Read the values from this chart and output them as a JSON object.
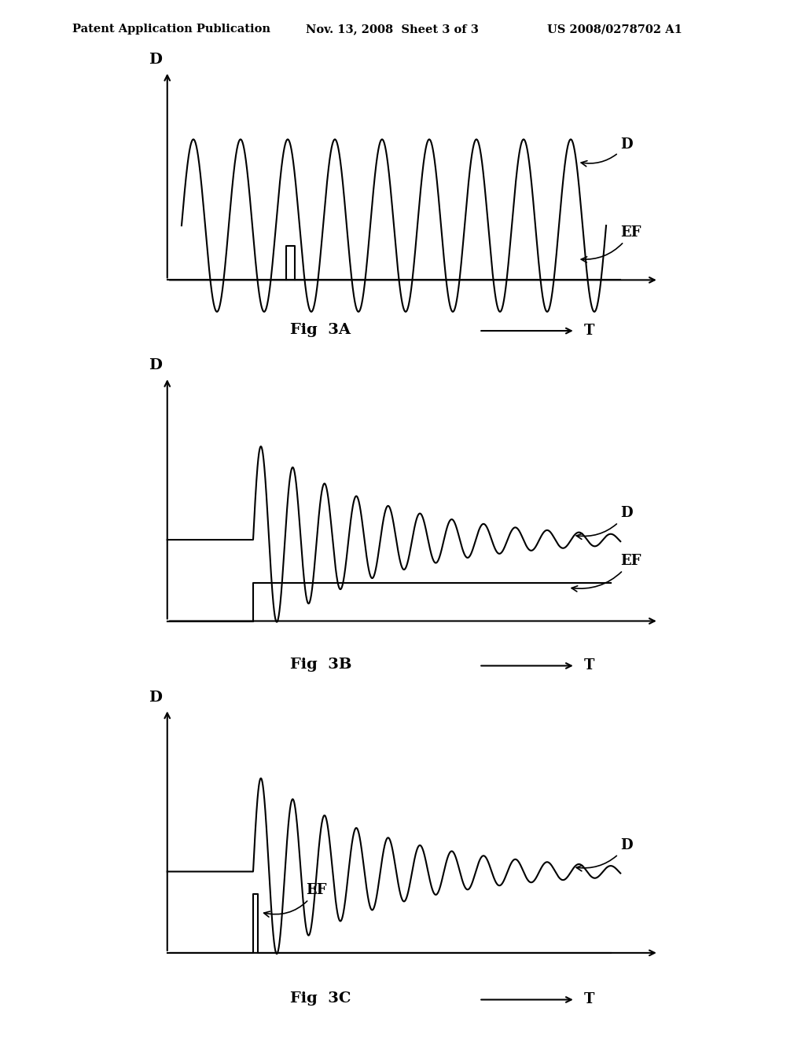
{
  "bg_color": "#ffffff",
  "header_left": "Patent Application Publication",
  "header_mid": "Nov. 13, 2008  Sheet 3 of 3",
  "header_right": "US 2008/0278702 A1",
  "line_color": "#000000",
  "text_color": "#000000",
  "header_fontsize": 10.5,
  "label_fontsize": 13,
  "fig_label_fontsize": 14,
  "axis_label_fontsize": 14
}
